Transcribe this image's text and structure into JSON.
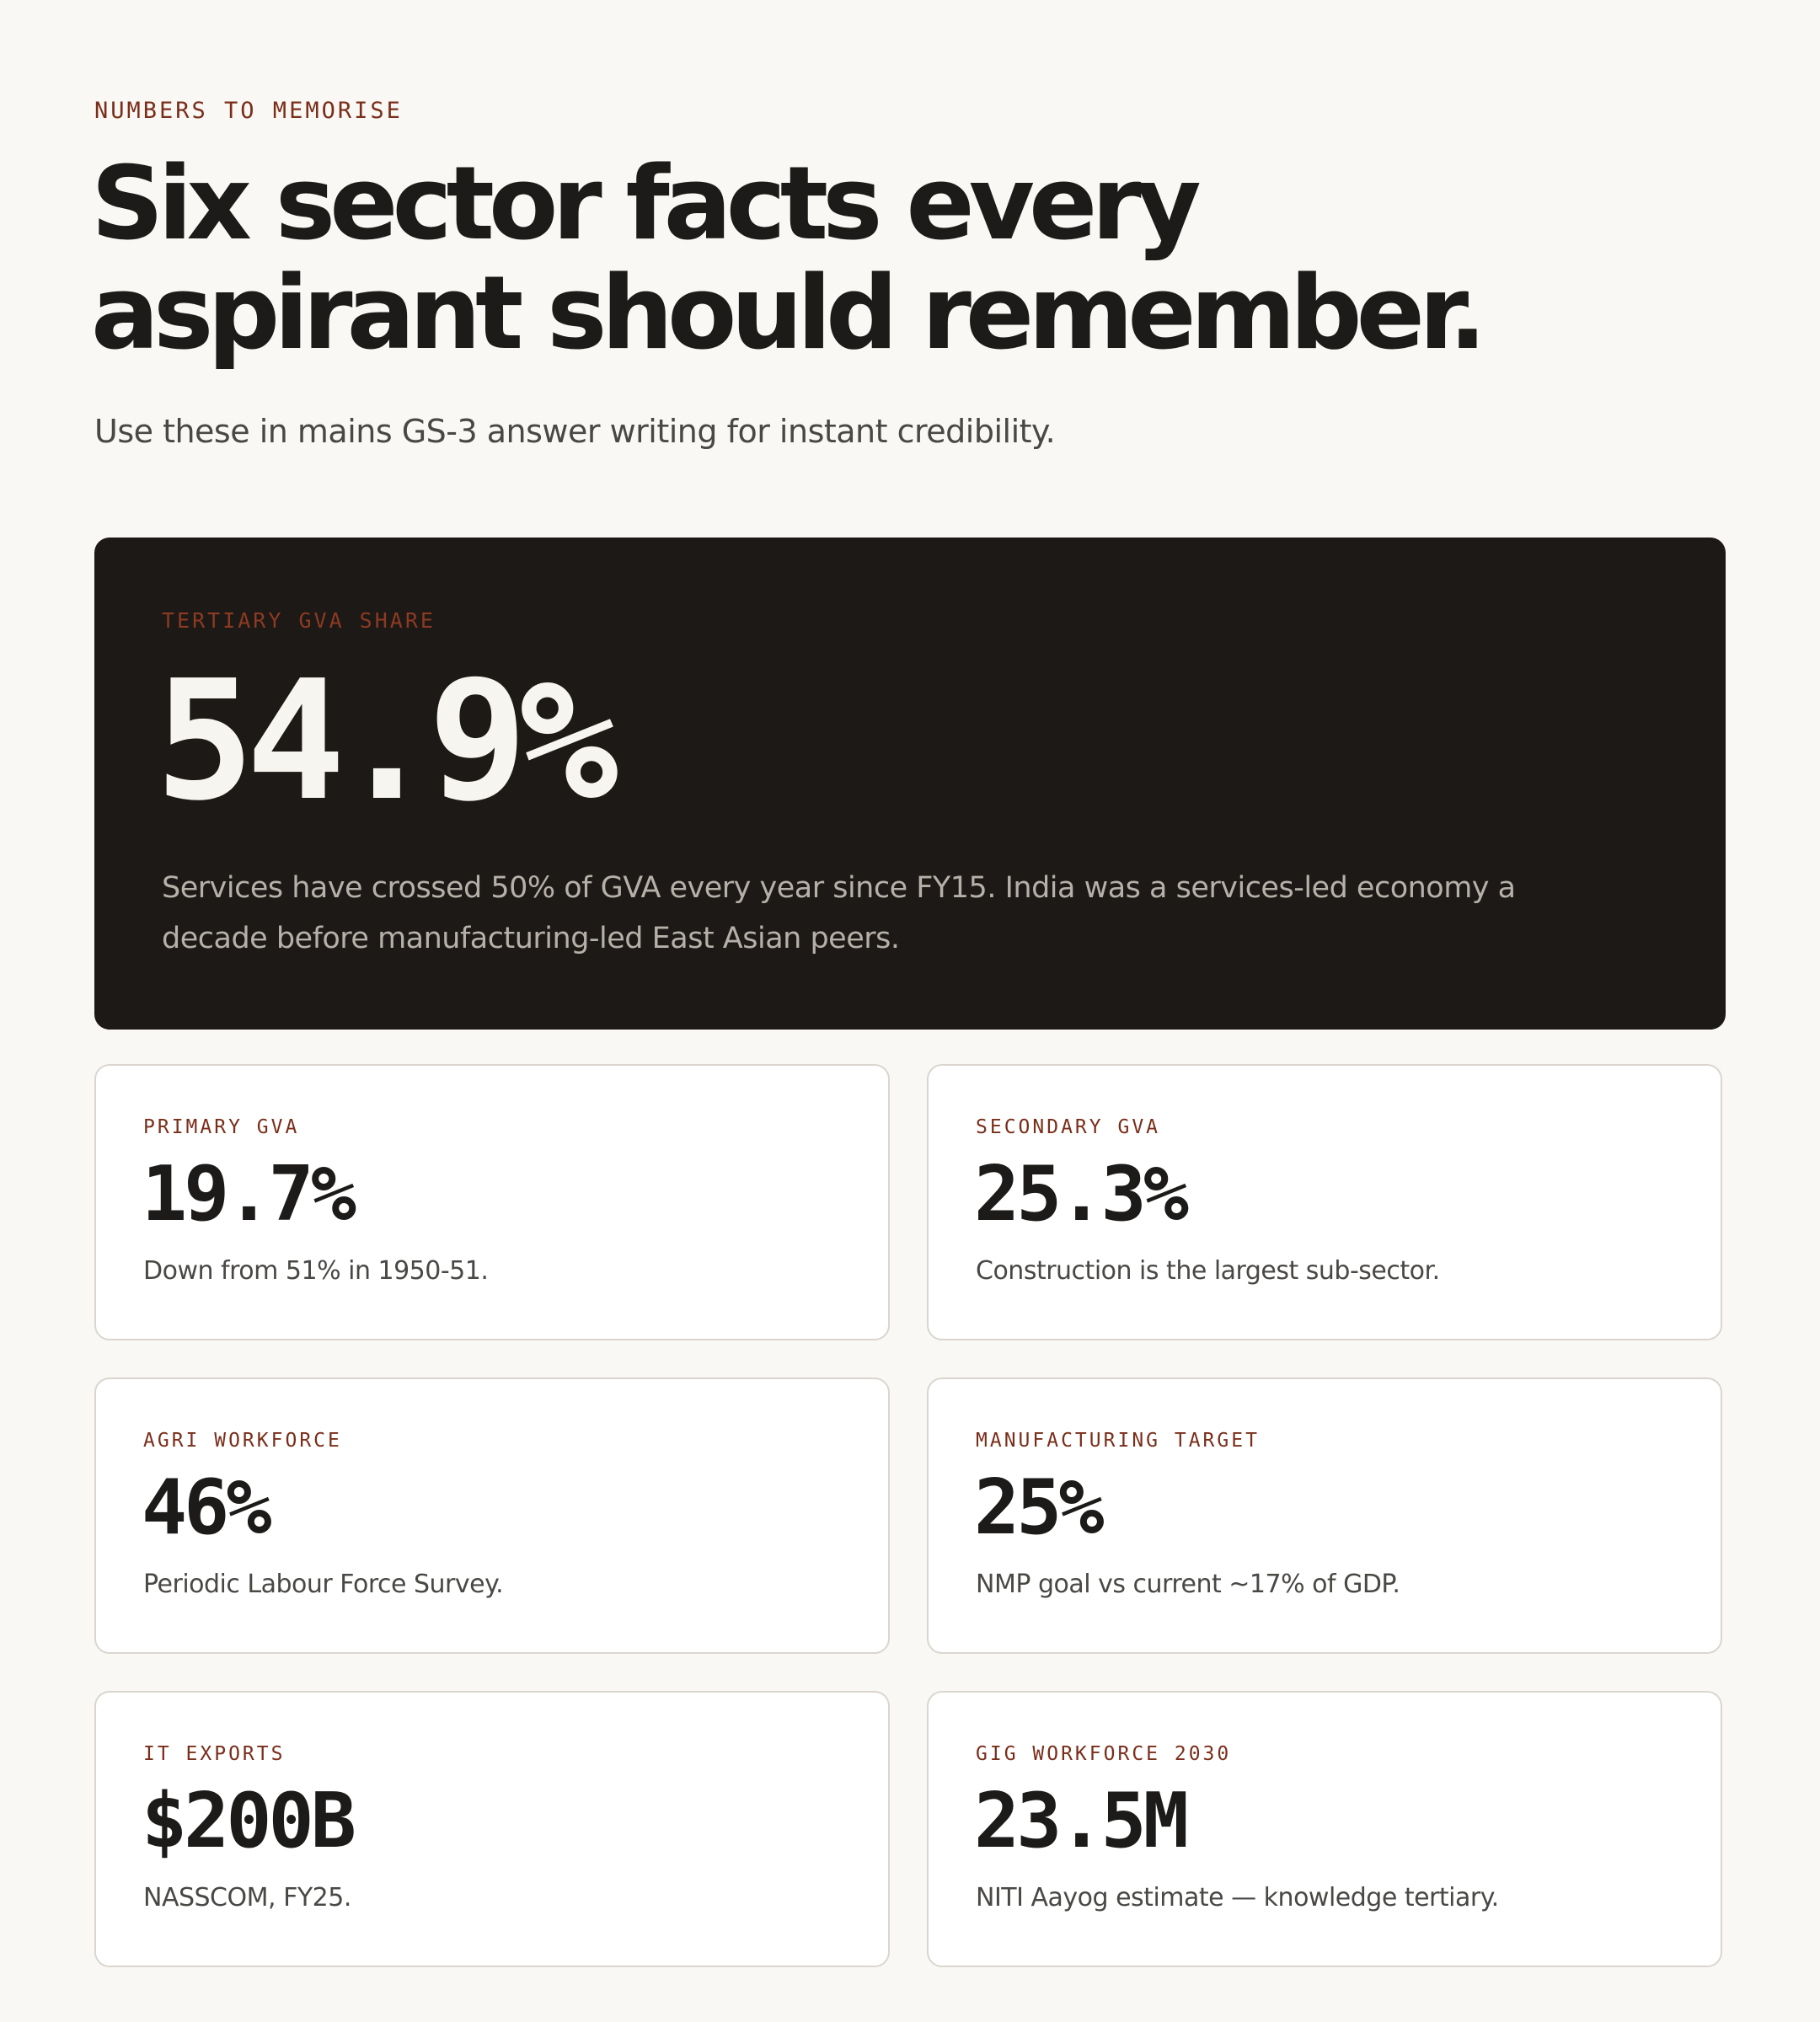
{
  "header": {
    "eyebrow": "NUMBERS TO MEMORISE",
    "title_line1": "Six sector facts every",
    "title_line2": "aspirant should remember.",
    "subtitle": "Use these in mains GS-3 answer writing for instant credibility."
  },
  "hero": {
    "label": "TERTIARY GVA SHARE",
    "value": "54.9%",
    "description": "Services have crossed 50% of GVA every year since FY15. India was a services-led economy a decade before manufacturing-led East Asian peers."
  },
  "cards": [
    {
      "label": "PRIMARY GVA",
      "value": "19.7%",
      "description": "Down from 51% in 1950-51."
    },
    {
      "label": "SECONDARY GVA",
      "value": "25.3%",
      "description": "Construction is the largest sub-sector."
    },
    {
      "label": "AGRI WORKFORCE",
      "value": "46%",
      "description": "Periodic Labour Force Survey."
    },
    {
      "label": "MANUFACTURING TARGET",
      "value": "25%",
      "description": "NMP goal vs current ~17% of GDP."
    },
    {
      "label": "IT EXPORTS",
      "value": "$200B",
      "description": "NASSCOM, FY25."
    },
    {
      "label": "GIG WORKFORCE 2030",
      "value": "23.5M",
      "description": "NITI Aayog estimate — knowledge tertiary."
    }
  ]
}
